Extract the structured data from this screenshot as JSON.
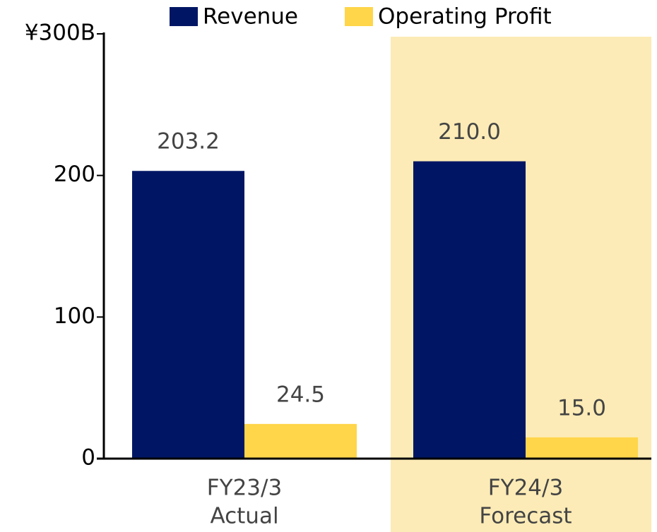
{
  "chart_data": {
    "type": "bar",
    "categories": [
      [
        "FY23/3",
        "Actual"
      ],
      [
        "FY24/3",
        "Forecast"
      ]
    ],
    "series": [
      {
        "name": "Revenue",
        "color": "#001664",
        "values": [
          203.2,
          210.0
        ],
        "value_labels": [
          "203.2",
          "210.0"
        ]
      },
      {
        "name": "Operating Profit",
        "color": "#ffd54a",
        "values": [
          24.5,
          15.0
        ],
        "value_labels": [
          "24.5",
          "15.0"
        ]
      }
    ],
    "ylim": [
      0,
      300
    ],
    "yticks": [
      0,
      100,
      200,
      {
        "value": 300,
        "label": "¥300B"
      }
    ],
    "legend": "top",
    "highlight": {
      "category": 1,
      "color": "#fcebb6"
    }
  }
}
